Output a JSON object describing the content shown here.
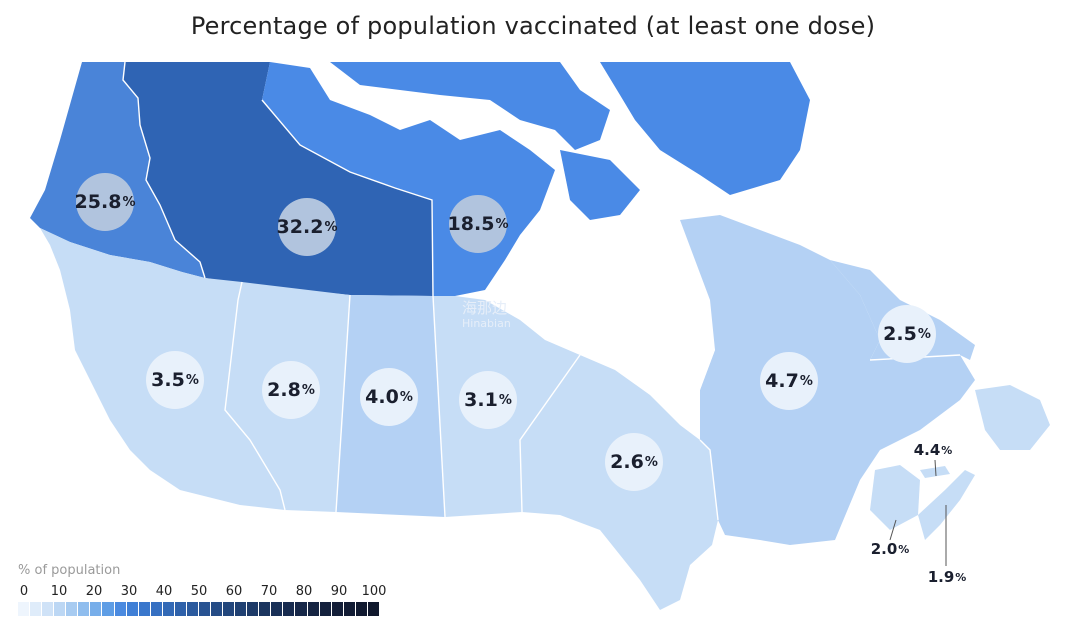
{
  "title": "Percentage of population vaccinated (at least one dose)",
  "colors": {
    "yukon": "#4a84d8",
    "nwt": "#2f64b4",
    "nunavut": "#4a8ae6",
    "low": "#c6ddf6",
    "mid": "#b4d1f4",
    "badge_light": "#e8f1fb",
    "badge_dark": "#b1c4de"
  },
  "provinces": [
    {
      "name": "Yukon",
      "value": "25.8"
    },
    {
      "name": "Northwest Territories",
      "value": "32.2"
    },
    {
      "name": "Nunavut",
      "value": "18.5"
    },
    {
      "name": "British Columbia",
      "value": "3.5"
    },
    {
      "name": "Alberta",
      "value": "2.8"
    },
    {
      "name": "Saskatchewan",
      "value": "4.0"
    },
    {
      "name": "Manitoba",
      "value": "3.1"
    },
    {
      "name": "Ontario",
      "value": "2.6"
    },
    {
      "name": "Quebec",
      "value": "4.7"
    },
    {
      "name": "Newfoundland and Labrador",
      "value": "2.5"
    },
    {
      "name": "Prince Edward Island",
      "value": "4.4"
    },
    {
      "name": "New Brunswick",
      "value": "2.0"
    },
    {
      "name": "Nova Scotia",
      "value": "1.9"
    }
  ],
  "pct_symbol": "%",
  "legend": {
    "title": "% of population",
    "ticks": [
      "0",
      "10",
      "20",
      "30",
      "40",
      "50",
      "60",
      "70",
      "80",
      "90",
      "100"
    ],
    "scale": [
      "#eef5fd",
      "#dfecfa",
      "#cfe2f7",
      "#bcd7f4",
      "#a7cbf1",
      "#8fbdee",
      "#77aeea",
      "#5e9de5",
      "#4a8ae0",
      "#3f7fd6",
      "#3a77cc",
      "#3670c2",
      "#3269b6",
      "#2e61aa",
      "#2b5a9e",
      "#285392",
      "#254c86",
      "#22467c",
      "#1f4072",
      "#1d3a68",
      "#1b355f",
      "#193057",
      "#172b4f",
      "#162748",
      "#152442",
      "#14213d",
      "#131e38",
      "#121c34",
      "#111a30",
      "#10182d"
    ]
  },
  "watermark": {
    "line1": "海那边",
    "line2": "Hinabian"
  }
}
